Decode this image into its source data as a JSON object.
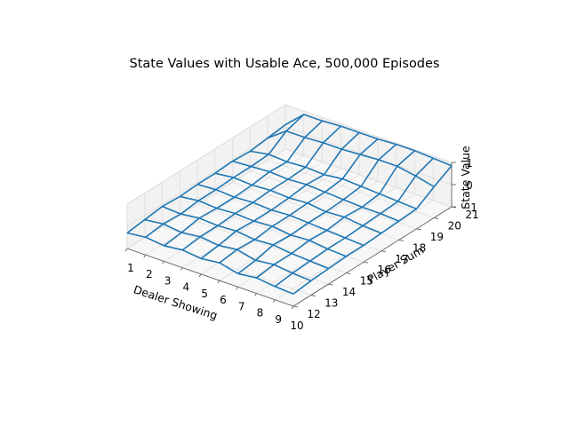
{
  "chart_data": {
    "type": "surface",
    "title": "State Values with Usable Ace, 500,000 Episodes",
    "xlabel": "Dealer Showing",
    "ylabel": "Player Sum",
    "zlabel": "State Value",
    "x_ticks": [
      "1",
      "2",
      "3",
      "4",
      "5",
      "6",
      "7",
      "8",
      "9",
      "10"
    ],
    "y_ticks": [
      "12",
      "13",
      "14",
      "15",
      "16",
      "17",
      "18",
      "19",
      "20",
      "21"
    ],
    "z_ticks": [
      "−1",
      "0",
      "1"
    ],
    "x": [
      1,
      2,
      3,
      4,
      5,
      6,
      7,
      8,
      9,
      10
    ],
    "y": [
      12,
      13,
      14,
      15,
      16,
      17,
      18,
      19,
      20,
      21
    ],
    "zlim": [
      -1,
      1
    ],
    "grid": true,
    "series_color": "#1f77b4",
    "z": [
      [
        -0.3,
        -0.2,
        -0.3,
        -0.2,
        -0.3,
        -0.2,
        -0.4,
        -0.3,
        -0.4,
        -0.45
      ],
      [
        -0.2,
        -0.1,
        -0.2,
        -0.1,
        -0.2,
        -0.1,
        -0.3,
        -0.2,
        -0.3,
        -0.35
      ],
      [
        -0.1,
        -0.15,
        -0.05,
        -0.1,
        -0.05,
        -0.15,
        -0.1,
        -0.2,
        -0.25,
        -0.3
      ],
      [
        -0.15,
        -0.05,
        -0.1,
        -0.05,
        -0.1,
        -0.05,
        -0.15,
        -0.1,
        -0.2,
        -0.25
      ],
      [
        -0.1,
        -0.05,
        -0.1,
        -0.05,
        -0.1,
        -0.05,
        -0.1,
        -0.15,
        -0.2,
        -0.25
      ],
      [
        -0.1,
        0.0,
        -0.05,
        0.0,
        -0.05,
        0.0,
        -0.1,
        -0.05,
        -0.15,
        -0.2
      ],
      [
        -0.05,
        0.0,
        0.05,
        0.0,
        0.05,
        0.0,
        -0.05,
        -0.1,
        -0.1,
        -0.15
      ],
      [
        -0.1,
        0.05,
        0.0,
        0.05,
        0.0,
        0.1,
        0.05,
        0.0,
        -0.05,
        -0.1
      ],
      [
        0.0,
        0.6,
        0.6,
        0.65,
        0.65,
        0.7,
        0.75,
        0.75,
        0.6,
        0.4
      ],
      [
        0.1,
        0.85,
        0.85,
        0.9,
        0.9,
        0.9,
        0.95,
        0.95,
        0.9,
        0.85
      ]
    ]
  }
}
